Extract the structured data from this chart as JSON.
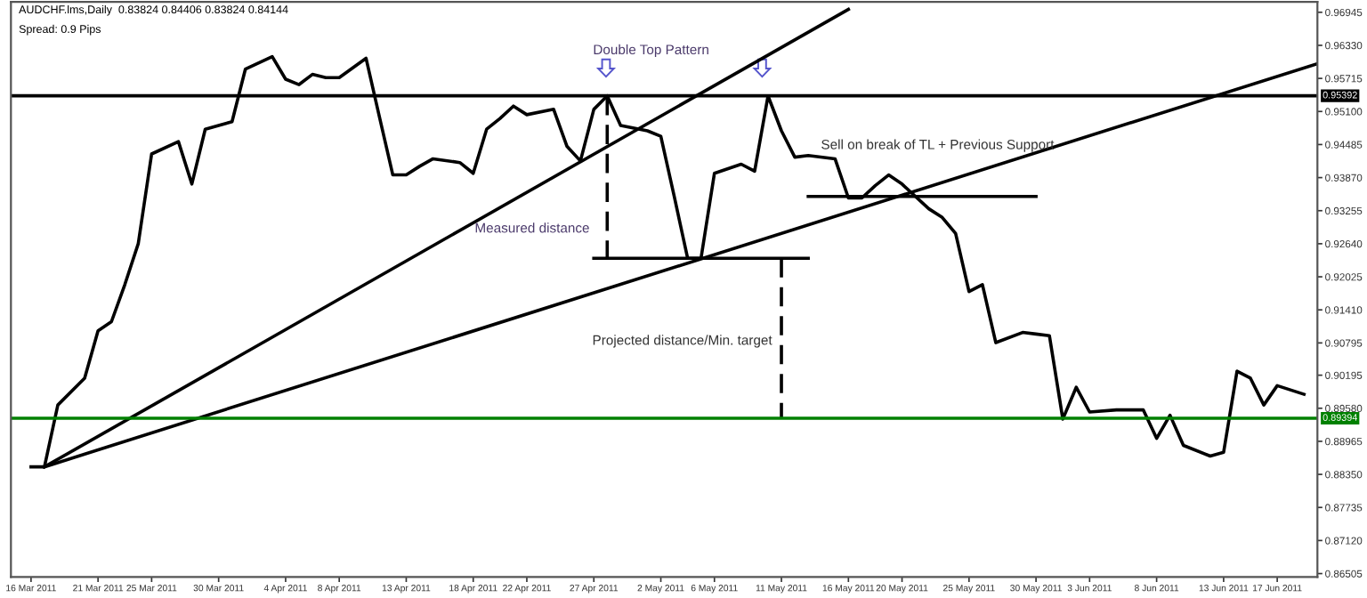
{
  "chart_data": {
    "type": "line",
    "title": "AUDCHF.lms,Daily  0.83824 0.84406 0.83824 0.84144",
    "subtitle": "Spread: 0.9 Pips",
    "xlim": [
      "2011-03-14T12:00",
      "2011-06-20"
    ],
    "ylim": [
      0.8644,
      0.9714
    ],
    "xticks": [
      {
        "value": "2011-03-16",
        "label": "16 Mar 2011"
      },
      {
        "value": "2011-03-21",
        "label": "21 Mar 2011"
      },
      {
        "value": "2011-03-25",
        "label": "25 Mar 2011"
      },
      {
        "value": "2011-03-30",
        "label": "30 Mar 2011"
      },
      {
        "value": "2011-04-04",
        "label": "4 Apr 2011"
      },
      {
        "value": "2011-04-08",
        "label": "8 Apr 2011"
      },
      {
        "value": "2011-04-13",
        "label": "13 Apr 2011"
      },
      {
        "value": "2011-04-18",
        "label": "18 Apr 2011"
      },
      {
        "value": "2011-04-22",
        "label": "22 Apr 2011"
      },
      {
        "value": "2011-04-27",
        "label": "27 Apr 2011"
      },
      {
        "value": "2011-05-02",
        "label": "2 May 2011"
      },
      {
        "value": "2011-05-06",
        "label": "6 May 2011"
      },
      {
        "value": "2011-05-11",
        "label": "11 May 2011"
      },
      {
        "value": "2011-05-16",
        "label": "16 May 2011"
      },
      {
        "value": "2011-05-20",
        "label": "20 May 2011"
      },
      {
        "value": "2011-05-25",
        "label": "25 May 2011"
      },
      {
        "value": "2011-05-30",
        "label": "30 May 2011"
      },
      {
        "value": "2011-06-03",
        "label": "3 Jun 2011"
      },
      {
        "value": "2011-06-08",
        "label": "8 Jun 2011"
      },
      {
        "value": "2011-06-13",
        "label": "13 Jun 2011"
      },
      {
        "value": "2011-06-17",
        "label": "17 Jun 2011"
      }
    ],
    "yticks": [
      0.96945,
      {
        "value": 0.9633,
        "label": "0.96330"
      },
      0.95715,
      {
        "value": 0.951,
        "label": "0.95100"
      },
      0.94485,
      {
        "value": 0.9387,
        "label": "0.93870"
      },
      0.93255,
      {
        "value": 0.9264,
        "label": "0.92640"
      },
      0.92025,
      {
        "value": 0.9141,
        "label": "0.91410"
      },
      0.90795,
      0.90195,
      {
        "value": 0.8958,
        "label": "0.89580"
      },
      0.88965,
      {
        "value": 0.8835,
        "label": "0.88350"
      },
      0.87735,
      {
        "value": 0.8712,
        "label": "0.87120"
      },
      0.86505
    ],
    "grid": false,
    "legend": false,
    "series": [
      {
        "color": "#000000",
        "x": [
          "2011-03-16",
          "2011-03-17",
          "2011-03-18",
          "2011-03-20",
          "2011-03-21",
          "2011-03-22",
          "2011-03-23",
          "2011-03-24",
          "2011-03-25",
          "2011-03-27",
          "2011-03-28",
          "2011-03-29",
          "2011-03-30",
          "2011-03-31",
          "2011-04-01",
          "2011-04-03",
          "2011-04-04",
          "2011-04-05",
          "2011-04-06",
          "2011-04-07",
          "2011-04-08",
          "2011-04-10",
          "2011-04-11",
          "2011-04-12",
          "2011-04-13",
          "2011-04-14",
          "2011-04-15",
          "2011-04-17",
          "2011-04-18",
          "2011-04-19",
          "2011-04-20",
          "2011-04-21",
          "2011-04-22",
          "2011-04-24",
          "2011-04-25",
          "2011-04-26",
          "2011-04-27",
          "2011-04-28",
          "2011-04-29",
          "2011-05-01",
          "2011-05-02",
          "2011-05-03",
          "2011-05-04",
          "2011-05-05",
          "2011-05-06",
          "2011-05-08",
          "2011-05-09",
          "2011-05-10",
          "2011-05-11",
          "2011-05-12",
          "2011-05-13",
          "2011-05-15",
          "2011-05-16",
          "2011-05-17",
          "2011-05-18",
          "2011-05-19",
          "2011-05-20",
          "2011-05-22",
          "2011-05-23",
          "2011-05-24",
          "2011-05-25",
          "2011-05-26",
          "2011-05-27",
          "2011-05-29",
          "2011-05-30",
          "2011-05-31",
          "2011-06-01",
          "2011-06-02",
          "2011-06-03",
          "2011-06-05",
          "2011-06-06",
          "2011-06-07",
          "2011-06-08",
          "2011-06-09",
          "2011-06-10",
          "2011-06-12",
          "2011-06-13",
          "2011-06-14",
          "2011-06-15",
          "2011-06-16",
          "2011-06-17",
          "2011-06-19"
        ],
        "values": [
          0.8849,
          0.8849,
          0.8964,
          0.9014,
          0.9102,
          0.9119,
          0.9188,
          0.9264,
          0.9431,
          0.9454,
          0.9375,
          0.9477,
          0.9484,
          0.9491,
          0.9589,
          0.9612,
          0.957,
          0.956,
          0.9579,
          0.9573,
          0.9573,
          0.9609,
          0.95,
          0.9392,
          0.9392,
          0.9408,
          0.9422,
          0.9415,
          0.9395,
          0.9477,
          0.9497,
          0.952,
          0.9504,
          0.9514,
          0.9445,
          0.9418,
          0.9514,
          0.9539,
          0.9484,
          0.9474,
          0.9464,
          0.9352,
          0.9237,
          0.9237,
          0.9395,
          0.9412,
          0.9399,
          0.9539,
          0.9474,
          0.9425,
          0.9428,
          0.9422,
          0.9349,
          0.9349,
          0.9372,
          0.9392,
          0.9375,
          0.9329,
          0.9313,
          0.9283,
          0.9175,
          0.9188,
          0.908,
          0.9099,
          0.9096,
          0.9093,
          0.8938,
          0.8997,
          0.8951,
          0.8955,
          0.8955,
          0.8955,
          0.8902,
          0.8945,
          0.8889,
          0.8869,
          0.8876,
          0.9027,
          0.9014,
          0.8964,
          0.9,
          0.8984
        ]
      },
      {
        "color": "#000000",
        "x": [
          "2011-03-17",
          "2011-05-16"
        ],
        "values": [
          0.8849,
          0.97
        ]
      },
      {
        "color": "#000000",
        "x": [
          "2011-03-17",
          "2011-06-20"
        ],
        "values": [
          0.8849,
          0.9599
        ]
      },
      {
        "color": "#000000",
        "x": [
          "2011-04-27",
          "2011-05-13"
        ],
        "values": [
          0.9237,
          0.9237
        ]
      },
      {
        "color": "#000000",
        "x": [
          "2011-05-13",
          "2011-05-30"
        ],
        "values": [
          0.9352,
          0.9352
        ]
      },
      {
        "color": "#000000",
        "line_style": "dashed",
        "x": [
          "2011-04-28",
          "2011-04-28"
        ],
        "values": [
          0.9539,
          0.9237
        ]
      },
      {
        "color": "#000000",
        "line_style": "dashed",
        "x": [
          "2011-05-11",
          "2011-05-11"
        ],
        "values": [
          0.9237,
          0.8939
        ]
      }
    ],
    "ref_lines": [
      {
        "axis": "y",
        "value": 0.95392,
        "label": "0.95392",
        "color": "#000000"
      },
      {
        "axis": "y",
        "value": 0.89394,
        "label": "0.89394",
        "color": "#008000"
      }
    ],
    "annotations": [
      "Double Top Pattern",
      "Measured distance",
      "Sell on break of TL + Previous Support",
      "Projected distance/Min. target"
    ]
  }
}
